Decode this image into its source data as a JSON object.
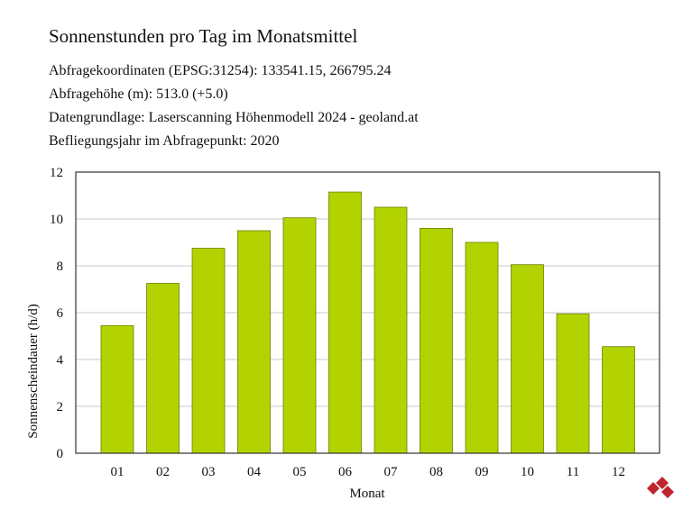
{
  "header": {
    "title": "Sonnenstunden pro Tag im Monatsmittel",
    "lines": [
      "Abfragekoordinaten (EPSG:31254): 133541.15, 266795.24",
      "Abfragehöhe (m): 513.0 (+5.0)",
      "Datengrundlage: Laserscanning Höhenmodell 2024 - geoland.at",
      "Befliegungsjahr im Abfragepunkt: 2020"
    ]
  },
  "chart_data": {
    "type": "bar",
    "categories": [
      "01",
      "02",
      "03",
      "04",
      "05",
      "06",
      "07",
      "08",
      "09",
      "10",
      "11",
      "12"
    ],
    "values": [
      5.45,
      7.25,
      8.75,
      9.5,
      10.05,
      11.15,
      10.5,
      9.6,
      9.0,
      8.05,
      5.95,
      4.55
    ],
    "xlabel": "Monat",
    "ylabel": "Sonnenscheindauer (h/d)",
    "ylim": [
      0,
      12
    ],
    "yticks": [
      0,
      2,
      4,
      6,
      8,
      10,
      12
    ],
    "grid": true,
    "bar_color": "#b2d300",
    "bar_stroke": "#6f7f00",
    "grid_color": "#c8c8c8"
  },
  "logo": {
    "icon": "stacked-cubes-logo-icon",
    "color": "#c0262d"
  }
}
